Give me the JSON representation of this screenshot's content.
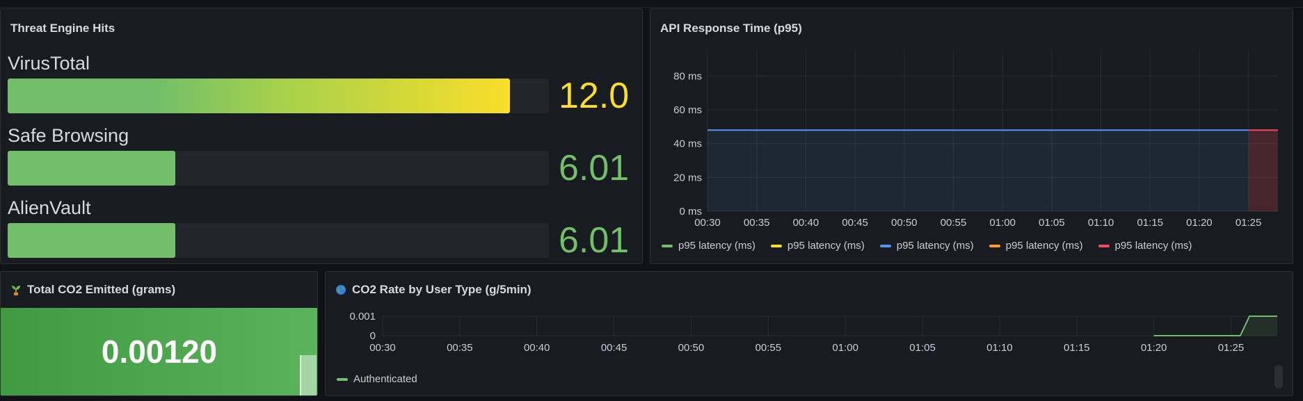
{
  "threat_panel": {
    "title": "Threat Engine Hits",
    "engines": [
      {
        "name": "VirusTotal",
        "value": "12.0",
        "fraction": 0.928,
        "color": "#fade2a",
        "gradient": true
      },
      {
        "name": "Safe Browsing",
        "value": "6.01",
        "fraction": 0.31,
        "color": "#73bf69",
        "gradient": false
      },
      {
        "name": "AlienVault",
        "value": "6.01",
        "fraction": 0.31,
        "color": "#73bf69",
        "gradient": false
      }
    ]
  },
  "api_panel": {
    "title": "API Response Time (p95)",
    "legend": [
      {
        "label": "p95 latency (ms)",
        "color": "#73bf69"
      },
      {
        "label": "p95 latency (ms)",
        "color": "#fade2a"
      },
      {
        "label": "p95 latency (ms)",
        "color": "#5794f2"
      },
      {
        "label": "p95 latency (ms)",
        "color": "#ff9830"
      },
      {
        "label": "p95 latency (ms)",
        "color": "#f2495c"
      }
    ]
  },
  "co2_total_panel": {
    "title": "Total CO2 Emitted (grams)",
    "icon": "seedling-icon",
    "value": "0.00120",
    "color": "#56a64b"
  },
  "co2_rate_panel": {
    "title": "CO2 Rate by User Type (g/5min)",
    "icon": "globe-icon",
    "legend": [
      {
        "label": "Authenticated",
        "color": "#73bf69"
      }
    ]
  },
  "chart_data": [
    {
      "type": "line",
      "title": "API Response Time (p95)",
      "x": [
        "00:30",
        "00:35",
        "00:40",
        "00:45",
        "00:50",
        "00:55",
        "01:00",
        "01:05",
        "01:10",
        "01:15",
        "01:20",
        "01:25"
      ],
      "y_ticks": [
        "0 ms",
        "20 ms",
        "40 ms",
        "60 ms",
        "80 ms"
      ],
      "ylim": [
        0,
        95
      ],
      "xlim_minutes": [
        0,
        58
      ],
      "series": [
        {
          "name": "p95 latency (ms)",
          "color": "#5794f2",
          "points": [
            [
              0,
              48
            ],
            [
              55,
              48
            ]
          ]
        },
        {
          "name": "p95 latency (ms)",
          "color": "#f2495c",
          "points": [
            [
              55,
              48
            ],
            [
              58,
              48
            ]
          ]
        }
      ],
      "grid": true,
      "legend": "bottom"
    },
    {
      "type": "area",
      "title": "CO2 Rate by User Type (g/5min)",
      "x": [
        "00:30",
        "00:35",
        "00:40",
        "00:45",
        "00:50",
        "00:55",
        "01:00",
        "01:05",
        "01:10",
        "01:15",
        "01:20",
        "01:25"
      ],
      "y_ticks": [
        "0",
        "0.001"
      ],
      "ylim": [
        0,
        0.001
      ],
      "xlim_minutes": [
        0,
        58
      ],
      "series": [
        {
          "name": "Authenticated",
          "color": "#73bf69",
          "points": [
            [
              50,
              0
            ],
            [
              55.6,
              0
            ],
            [
              56.2,
              0.001
            ],
            [
              58,
              0.001
            ]
          ]
        }
      ],
      "grid": true,
      "legend": "bottom"
    }
  ]
}
